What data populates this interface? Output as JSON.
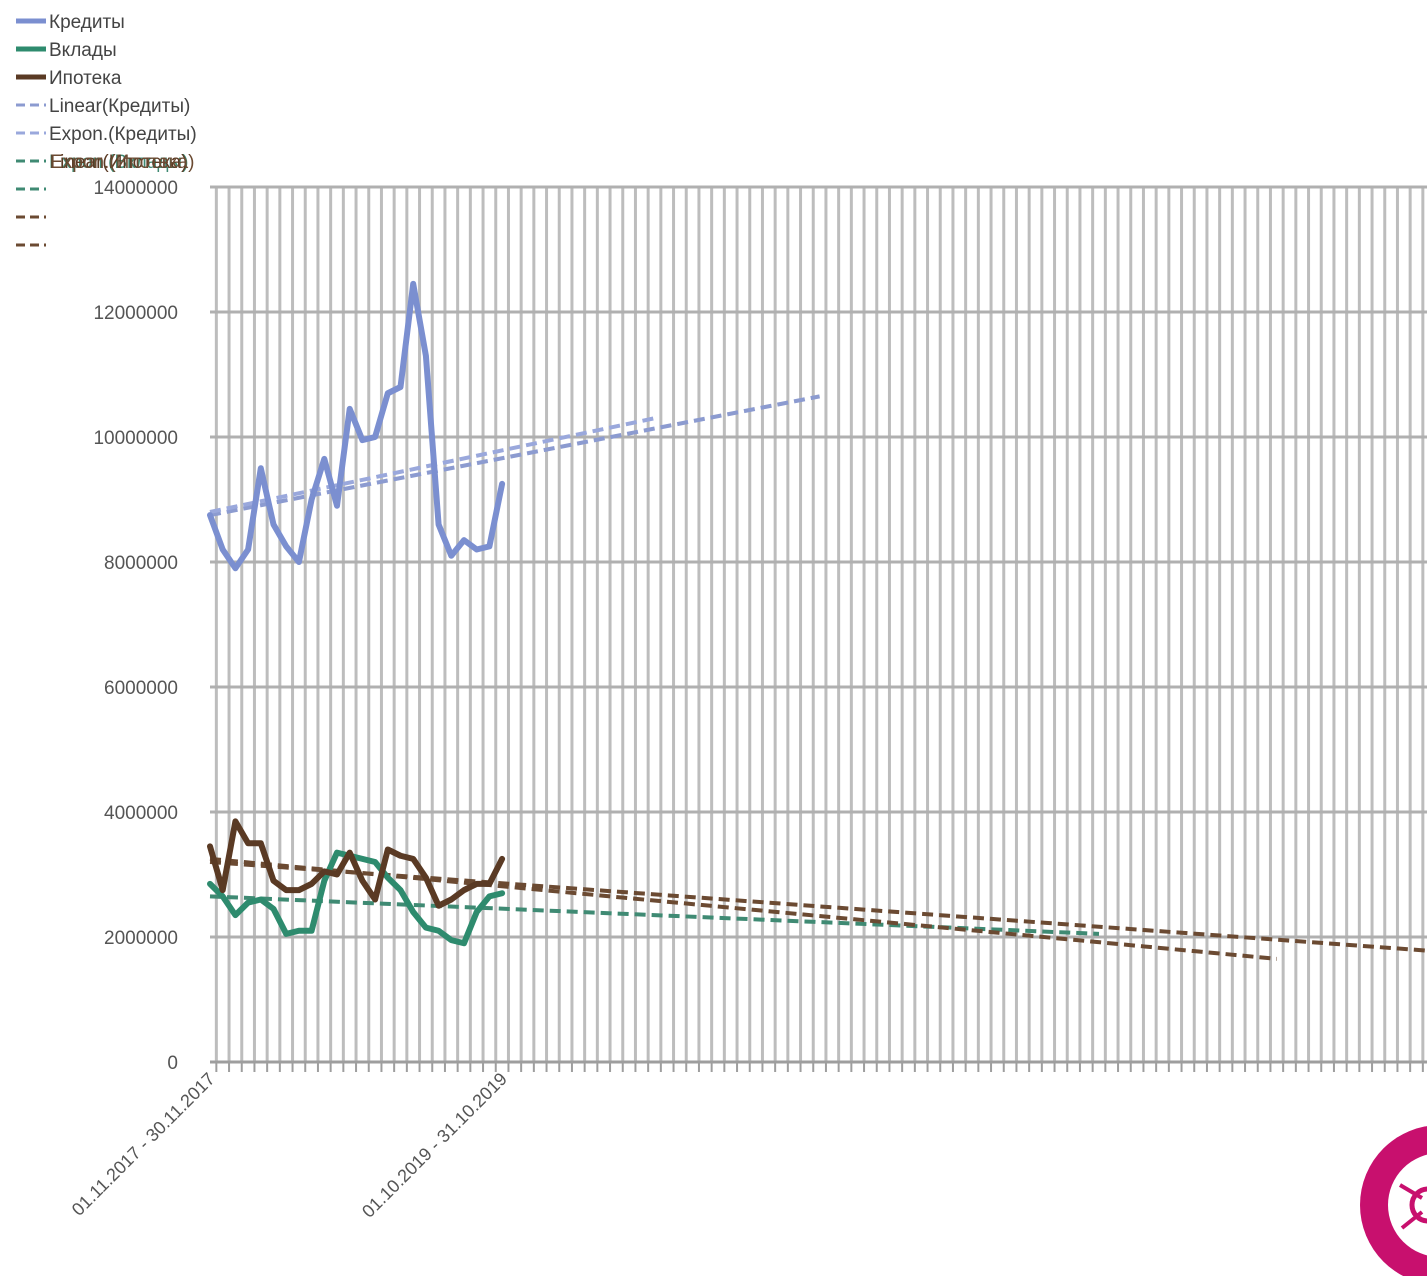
{
  "chart_data": {
    "type": "line",
    "title": "",
    "xlabel": "",
    "ylabel": "",
    "ylim": [
      0,
      14000000
    ],
    "y_ticks": [
      0,
      2000000,
      4000000,
      6000000,
      8000000,
      10000000,
      12000000,
      14000000
    ],
    "y_tick_labels": [
      "0",
      "2000000",
      "4000000",
      "6000000",
      "8000000",
      "10000000",
      "12000000",
      "14000000"
    ],
    "grid": "vertical-and-horizontal",
    "legend_position": "top-left",
    "x_tick_labels_visible": [
      "01.11.2017 - 30.11.2017",
      "01.10.2019 - 31.10.2019"
    ],
    "x_period_count": 24,
    "x_axis_total_slots": 99,
    "series": [
      {
        "name": "Кредиты",
        "color": "#7b8fd0",
        "values": [
          8750000,
          8200000,
          7900000,
          8200000,
          9500000,
          8600000,
          8250000,
          8000000,
          9000000,
          9650000,
          8900000,
          10450000,
          9950000,
          10000000,
          10700000,
          10800000,
          12450000,
          11300000,
          8600000,
          8100000,
          8350000,
          8200000,
          8250000,
          9250000
        ]
      },
      {
        "name": "Вклады",
        "color": "#2e8b6e",
        "values": [
          2850000,
          2650000,
          2350000,
          2550000,
          2600000,
          2450000,
          2050000,
          2100000,
          2100000,
          2900000,
          3350000,
          3300000,
          3250000,
          3200000,
          2950000,
          2750000,
          2400000,
          2150000,
          2100000,
          1950000,
          1900000,
          2400000,
          2650000,
          2700000
        ]
      },
      {
        "name": "Ипотека",
        "color": "#5a3a24",
        "values": [
          3450000,
          2750000,
          3850000,
          3500000,
          3500000,
          2900000,
          2750000,
          2750000,
          2850000,
          3050000,
          3000000,
          3350000,
          2900000,
          2600000,
          3400000,
          3300000,
          3250000,
          2950000,
          2500000,
          2600000,
          2750000,
          2850000,
          2850000,
          3250000
        ]
      }
    ],
    "trendlines": [
      {
        "name": "Linear(Кредиты)",
        "color": "#8c9bd0",
        "from": [
          0,
          8750000
        ],
        "to": [
          48,
          10650000
        ]
      },
      {
        "name": "Expon.(Кредиты)",
        "color": "#9aa8dc",
        "from": [
          0,
          8800000
        ],
        "to": [
          35,
          10300000
        ]
      },
      {
        "name": "Expon.(Вклады)",
        "color": "#3f8a73",
        "from": [
          0,
          2650000
        ],
        "to": [
          70,
          2050000
        ]
      },
      {
        "name": "Expon.(Ипотека)",
        "color": "#6b4a32",
        "from": [
          0,
          3250000
        ],
        "to": [
          84,
          1650000
        ]
      },
      {
        "name": "Linear(Ипотека)",
        "color": "#6b4a32",
        "from": [
          0,
          3200000
        ],
        "to": [
          98,
          1750000
        ]
      }
    ]
  },
  "legend": {
    "overlapped_labels": [
      "Expon.(Вклады)",
      "Linear(Ипотека)",
      "Expon.(Ипотека)"
    ]
  }
}
